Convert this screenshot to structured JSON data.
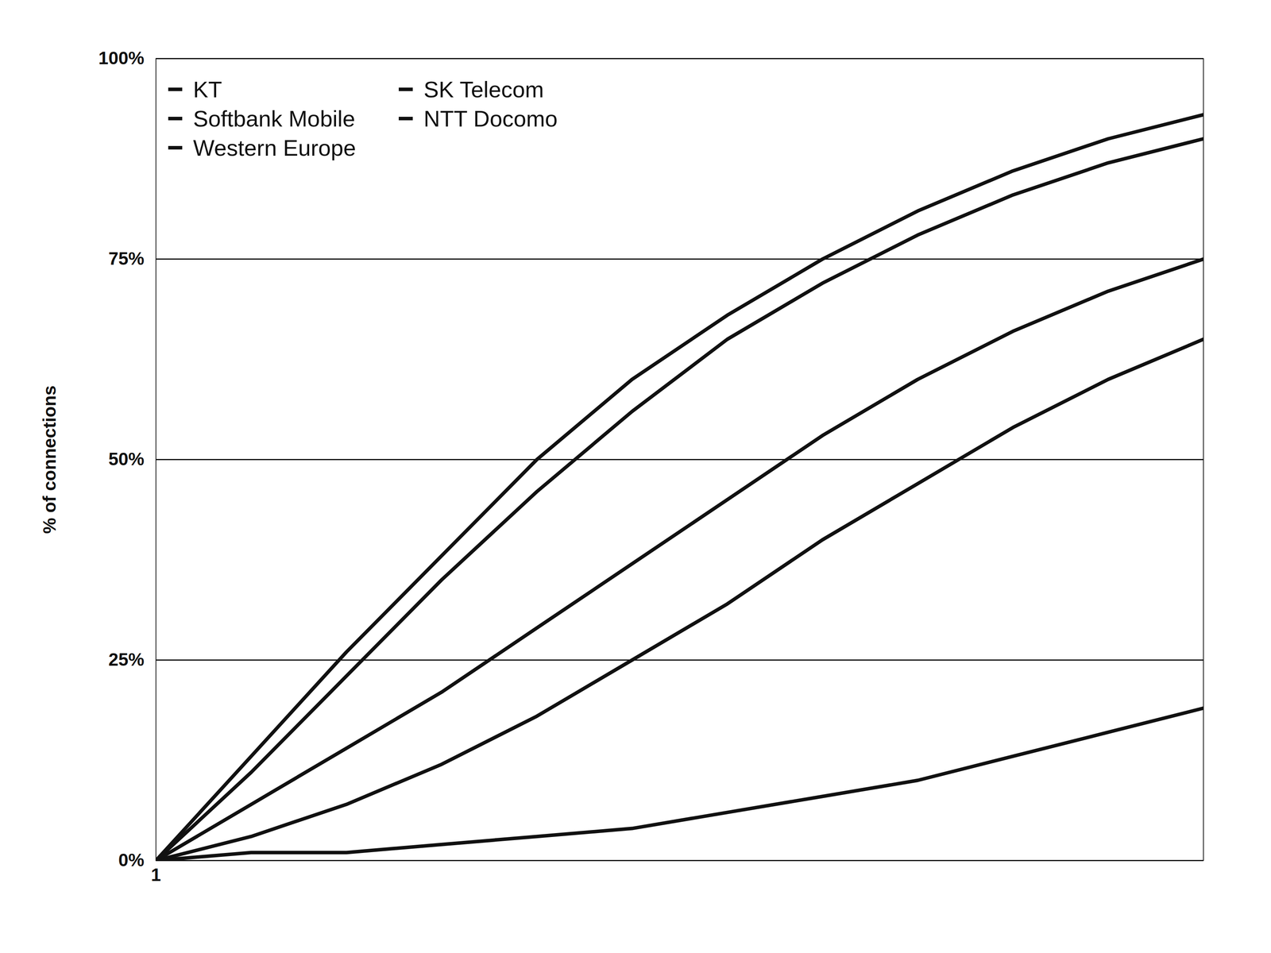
{
  "chart_data": {
    "type": "line",
    "y_label": "% of connections",
    "x": [
      1,
      2,
      3,
      4,
      5,
      6,
      7,
      8,
      9,
      10,
      11,
      12
    ],
    "xlim": [
      1,
      12
    ],
    "xticks": [
      1
    ],
    "ylim": [
      0,
      100
    ],
    "yticks": [
      {
        "value": 0,
        "label": "0%"
      },
      {
        "value": 25,
        "label": "25%"
      },
      {
        "value": 50,
        "label": "50%"
      },
      {
        "value": 75,
        "label": "75%"
      },
      {
        "value": 100,
        "label": "100%"
      }
    ],
    "grid": true,
    "legend": "upper left",
    "series": [
      {
        "name": "KT",
        "color": "#111111",
        "values": [
          0,
          11,
          23,
          35,
          46,
          56,
          65,
          72,
          78,
          83,
          87,
          90
        ]
      },
      {
        "name": "Softbank Mobile",
        "color": "#111111",
        "values": [
          0,
          3,
          7,
          12,
          18,
          25,
          32,
          40,
          47,
          54,
          60,
          65
        ]
      },
      {
        "name": "Western Europe",
        "color": "#111111",
        "values": [
          0,
          1,
          1,
          2,
          3,
          4,
          6,
          8,
          10,
          13,
          16,
          19
        ]
      },
      {
        "name": "SK Telecom",
        "color": "#111111",
        "values": [
          0,
          13,
          26,
          38,
          50,
          60,
          68,
          75,
          81,
          86,
          90,
          93
        ]
      },
      {
        "name": "NTT Docomo",
        "color": "#111111",
        "values": [
          0,
          7,
          14,
          21,
          29,
          37,
          45,
          53,
          60,
          66,
          71,
          75
        ]
      }
    ]
  }
}
